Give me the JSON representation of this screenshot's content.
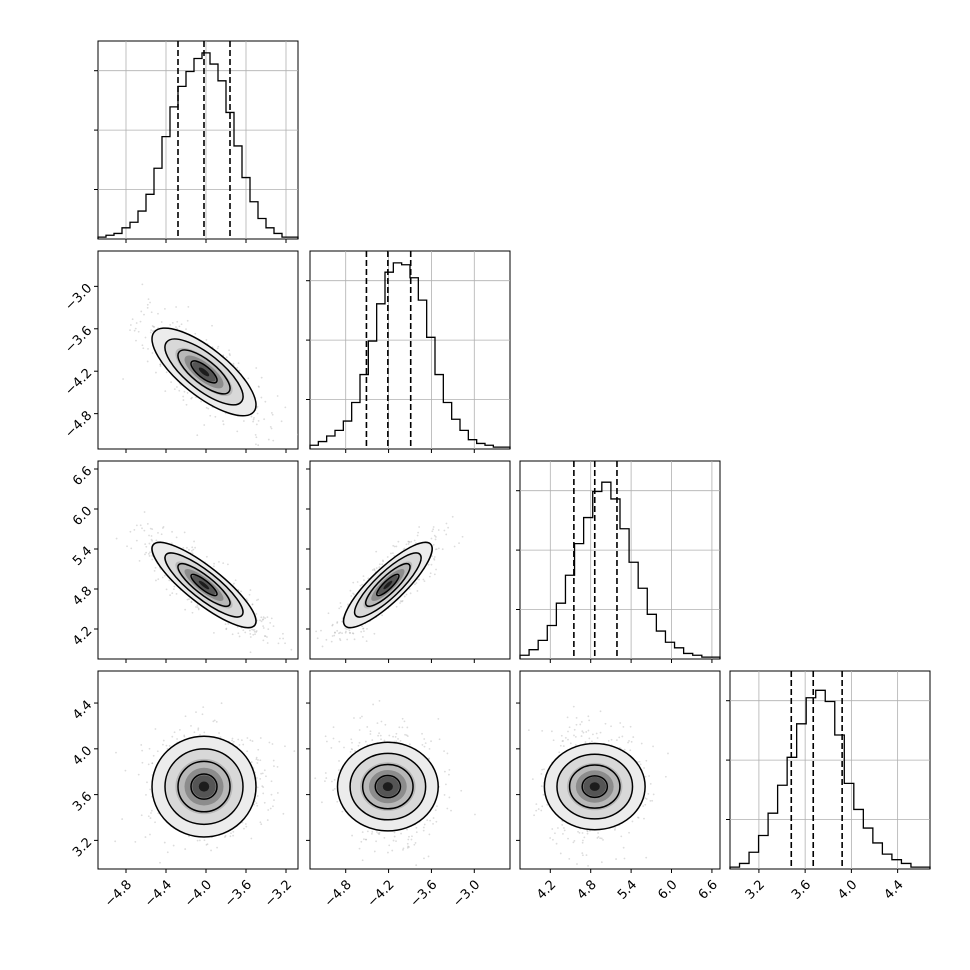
{
  "chart_data": {
    "type": "corner",
    "x_tick_labels": {
      "p0": [
        "−4.8",
        "−4.4",
        "−4.0",
        "−3.6",
        "−3.2"
      ],
      "p1": [
        "−4.8",
        "−4.2",
        "−3.6",
        "−3.0"
      ],
      "p2": [
        "4.2",
        "4.8",
        "5.4",
        "6.0",
        "6.6"
      ],
      "p3": [
        "3.2",
        "3.6",
        "4.0",
        "4.4"
      ]
    },
    "y_tick_labels": {
      "p1": [
        "−3.0",
        "−3.6",
        "−4.2",
        "−4.8"
      ],
      "p2": [
        "6.6",
        "6.0",
        "5.4",
        "4.8",
        "4.2"
      ],
      "p3": [
        "4.4",
        "4.0",
        "3.6",
        "3.2"
      ]
    },
    "params": [
      {
        "range": [
          -5.08,
          -3.08
        ],
        "ticks": [
          -4.8,
          -4.4,
          -4.0,
          -3.6,
          -3.2
        ],
        "quantiles": [
          -4.28,
          -4.02,
          -3.76
        ]
      },
      {
        "range": [
          -5.3,
          -2.5
        ],
        "ticks": [
          -4.8,
          -4.2,
          -3.6,
          -3.0
        ],
        "quantiles": [
          -4.51,
          -4.21,
          -3.89
        ]
      },
      {
        "range": [
          3.75,
          6.72
        ],
        "ticks": [
          4.2,
          4.8,
          5.4,
          6.0,
          6.6
        ],
        "quantiles": [
          4.55,
          4.86,
          5.19
        ]
      },
      {
        "range": [
          2.95,
          4.68
        ],
        "ticks": [
          3.2,
          3.6,
          4.0,
          4.4
        ],
        "quantiles": [
          3.48,
          3.67,
          3.92
        ]
      }
    ],
    "histograms": [
      [
        0.01,
        0.02,
        0.03,
        0.06,
        0.09,
        0.15,
        0.24,
        0.38,
        0.55,
        0.71,
        0.82,
        0.9,
        0.97,
        1.0,
        0.94,
        0.85,
        0.68,
        0.5,
        0.33,
        0.2,
        0.11,
        0.06,
        0.03,
        0.01,
        0.01
      ],
      [
        0.02,
        0.04,
        0.07,
        0.1,
        0.15,
        0.25,
        0.4,
        0.58,
        0.78,
        0.95,
        1.0,
        0.99,
        0.92,
        0.8,
        0.6,
        0.4,
        0.25,
        0.16,
        0.1,
        0.05,
        0.03,
        0.02,
        0.01,
        0.01
      ],
      [
        0.02,
        0.05,
        0.1,
        0.18,
        0.3,
        0.45,
        0.62,
        0.76,
        0.9,
        0.95,
        0.86,
        0.7,
        0.52,
        0.38,
        0.24,
        0.15,
        0.09,
        0.06,
        0.03,
        0.02,
        0.01,
        0.01
      ],
      [
        0.01,
        0.03,
        0.09,
        0.18,
        0.3,
        0.45,
        0.6,
        0.78,
        0.92,
        0.96,
        0.9,
        0.72,
        0.46,
        0.32,
        0.22,
        0.14,
        0.08,
        0.05,
        0.03,
        0.01,
        0.01
      ]
    ],
    "correlations": [
      [
        1,
        -0.75,
        -0.85,
        0
      ],
      [
        -0.75,
        1,
        0.85,
        0
      ],
      [
        -0.85,
        0.85,
        1,
        0
      ],
      [
        0,
        0,
        0,
        1
      ]
    ],
    "contour_levels": [
      0.5,
      1.0,
      1.5,
      2.0
    ],
    "colors": {
      "line": "#000000",
      "grid": "#b0b0b0",
      "points": "#9a9a9a"
    }
  }
}
